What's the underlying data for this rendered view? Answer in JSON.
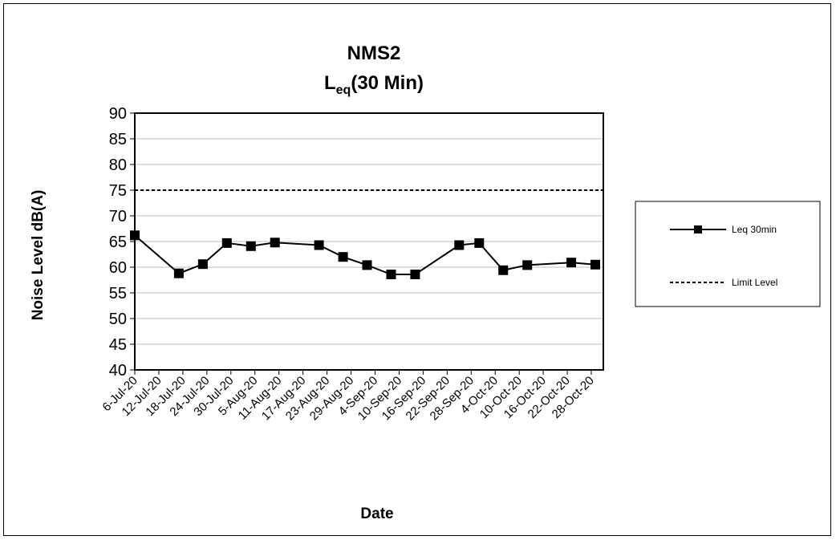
{
  "chart_data": {
    "type": "line",
    "title_line1": "NMS2",
    "title_line2_main": "L",
    "title_line2_sub": "eq",
    "title_line2_rest": "(30 Min)",
    "xlabel": "Date",
    "ylabel": "Noise Level dB(A)",
    "ylim": [
      40,
      90
    ],
    "ytick_step": 5,
    "x_ticks": [
      "6-Jul-20",
      "12-Jul-20",
      "18-Jul-20",
      "24-Jul-20",
      "30-Jul-20",
      "5-Aug-20",
      "11-Aug-20",
      "17-Aug-20",
      "23-Aug-20",
      "29-Aug-20",
      "4-Sep-20",
      "10-Sep-20",
      "16-Sep-20",
      "22-Sep-20",
      "28-Sep-20",
      "4-Oct-20",
      "10-Oct-20",
      "16-Oct-20",
      "22-Oct-20",
      "28-Oct-20"
    ],
    "x_range": [
      "2020-07-06",
      "2020-10-31"
    ],
    "grid": "horizontal",
    "legend_position": "right",
    "series": [
      {
        "name": "Leq 30min",
        "style": "solid",
        "marker": "square",
        "color": "#000000",
        "points": [
          {
            "x": "2020-07-06",
            "y": 66.2
          },
          {
            "x": "2020-07-17",
            "y": 58.8
          },
          {
            "x": "2020-07-23",
            "y": 60.6
          },
          {
            "x": "2020-07-29",
            "y": 64.7
          },
          {
            "x": "2020-08-04",
            "y": 64.1
          },
          {
            "x": "2020-08-10",
            "y": 64.8
          },
          {
            "x": "2020-08-21",
            "y": 64.3
          },
          {
            "x": "2020-08-27",
            "y": 62.0
          },
          {
            "x": "2020-09-02",
            "y": 60.4
          },
          {
            "x": "2020-09-08",
            "y": 58.6
          },
          {
            "x": "2020-09-14",
            "y": 58.6
          },
          {
            "x": "2020-09-25",
            "y": 64.3
          },
          {
            "x": "2020-09-30",
            "y": 64.7
          },
          {
            "x": "2020-10-06",
            "y": 59.4
          },
          {
            "x": "2020-10-12",
            "y": 60.4
          },
          {
            "x": "2020-10-23",
            "y": 60.9
          },
          {
            "x": "2020-10-29",
            "y": 60.5
          }
        ]
      },
      {
        "name": "Limit Level",
        "style": "dashed",
        "color": "#000000",
        "constant_y": 75
      }
    ]
  }
}
